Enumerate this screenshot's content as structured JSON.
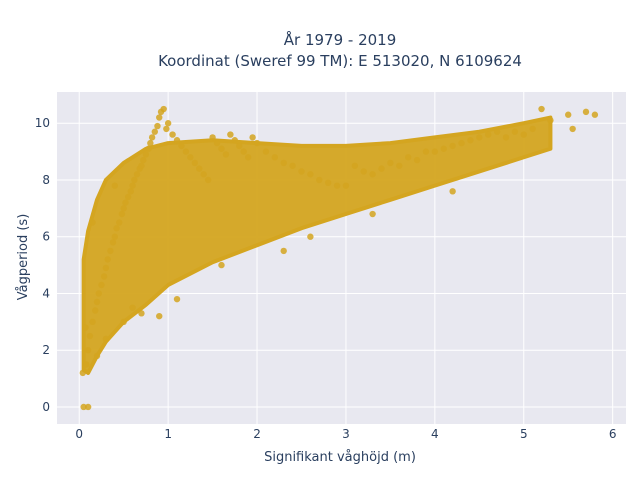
{
  "chart_data": {
    "type": "scatter",
    "title_line1": "År 1979 - 2019",
    "title_line2": "Koordinat (Sweref 99 TM): E 513020, N 6109624",
    "xlabel": "Signifikant våghöjd (m)",
    "ylabel": "Vågperiod (s)",
    "xlim": [
      -0.25,
      6.15
    ],
    "ylim": [
      -0.6,
      11.1
    ],
    "xticks": [
      0,
      1,
      2,
      3,
      4,
      5,
      6
    ],
    "yticks": [
      0,
      2,
      4,
      6,
      8,
      10
    ],
    "grid": true,
    "marker_color": "#D4A520",
    "plot_bg": "#E8E8F0",
    "grid_color": "#ffffff",
    "x": [
      0.05,
      0.08,
      0.1,
      0.12,
      0.15,
      0.18,
      0.2,
      0.22,
      0.25,
      0.28,
      0.3,
      0.32,
      0.35,
      0.38,
      0.4,
      0.42,
      0.45,
      0.48,
      0.5,
      0.52,
      0.55,
      0.58,
      0.6,
      0.62,
      0.65,
      0.68,
      0.7,
      0.72,
      0.75,
      0.78,
      0.8,
      0.82,
      0.85,
      0.88,
      0.9,
      0.92,
      0.95,
      0.98,
      1.0,
      1.05,
      1.1,
      1.15,
      1.2,
      1.25,
      1.3,
      1.35,
      1.4,
      1.45,
      1.5,
      1.55,
      1.6,
      1.65,
      1.7,
      1.75,
      1.8,
      1.85,
      1.9,
      1.95,
      2.0,
      2.1,
      2.2,
      2.3,
      2.4,
      2.5,
      2.6,
      2.7,
      2.8,
      2.9,
      3.0,
      3.1,
      3.2,
      3.3,
      3.4,
      3.5,
      3.6,
      3.7,
      3.8,
      3.9,
      4.0,
      4.1,
      4.2,
      4.3,
      4.4,
      4.5,
      4.6,
      4.7,
      4.8,
      4.9,
      5.0,
      5.1,
      5.2,
      5.3,
      5.5,
      5.55,
      5.7,
      5.8,
      0.04,
      0.07,
      0.1,
      0.6,
      0.9,
      1.1,
      2.3,
      0.3,
      0.5,
      0.7,
      0.2,
      0.15,
      0.4,
      1.6,
      2.6,
      3.3,
      4.2
    ],
    "y": [
      0.0,
      1.5,
      2.0,
      2.5,
      3.0,
      3.4,
      3.7,
      4.0,
      4.3,
      4.6,
      4.9,
      5.2,
      5.5,
      5.8,
      6.0,
      6.3,
      6.5,
      6.8,
      7.0,
      7.2,
      7.4,
      7.6,
      7.8,
      8.0,
      8.2,
      8.4,
      8.5,
      8.7,
      8.9,
      9.1,
      9.3,
      9.5,
      9.7,
      9.9,
      10.2,
      10.4,
      10.5,
      9.8,
      10.0,
      9.6,
      9.4,
      9.2,
      9.0,
      8.8,
      8.6,
      8.4,
      8.2,
      8.0,
      9.5,
      9.3,
      9.1,
      8.9,
      9.6,
      9.4,
      9.2,
      9.0,
      8.8,
      9.5,
      9.3,
      9.0,
      8.8,
      8.6,
      8.5,
      8.3,
      8.2,
      8.0,
      7.9,
      7.8,
      7.8,
      8.5,
      8.3,
      8.2,
      8.4,
      8.6,
      8.5,
      8.8,
      8.7,
      9.0,
      9.0,
      9.1,
      9.2,
      9.3,
      9.4,
      9.5,
      9.6,
      9.7,
      9.5,
      9.7,
      9.6,
      9.8,
      10.5,
      10.1,
      10.3,
      9.8,
      10.4,
      10.3,
      1.2,
      2.8,
      0.0,
      3.5,
      3.2,
      3.8,
      5.5,
      2.4,
      3.0,
      3.3,
      1.8,
      6.5,
      7.8,
      5.0,
      6.0,
      6.8,
      7.6
    ],
    "bands": [
      {
        "x": 0.05,
        "lo": 1.3,
        "hi": 5.2
      },
      {
        "x": 0.1,
        "lo": 1.2,
        "hi": 6.2
      },
      {
        "x": 0.2,
        "lo": 1.8,
        "hi": 7.3
      },
      {
        "x": 0.3,
        "lo": 2.3,
        "hi": 8.0
      },
      {
        "x": 0.5,
        "lo": 3.0,
        "hi": 8.6
      },
      {
        "x": 0.75,
        "lo": 3.6,
        "hi": 9.1
      },
      {
        "x": 1.0,
        "lo": 4.3,
        "hi": 9.3
      },
      {
        "x": 1.5,
        "lo": 5.1,
        "hi": 9.4
      },
      {
        "x": 2.0,
        "lo": 5.7,
        "hi": 9.3
      },
      {
        "x": 2.5,
        "lo": 6.3,
        "hi": 9.2
      },
      {
        "x": 3.0,
        "lo": 6.8,
        "hi": 9.2
      },
      {
        "x": 3.5,
        "lo": 7.3,
        "hi": 9.3
      },
      {
        "x": 4.0,
        "lo": 7.8,
        "hi": 9.5
      },
      {
        "x": 4.5,
        "lo": 8.3,
        "hi": 9.7
      },
      {
        "x": 5.0,
        "lo": 8.8,
        "hi": 10.0
      },
      {
        "x": 5.3,
        "lo": 9.1,
        "hi": 10.2
      }
    ]
  }
}
